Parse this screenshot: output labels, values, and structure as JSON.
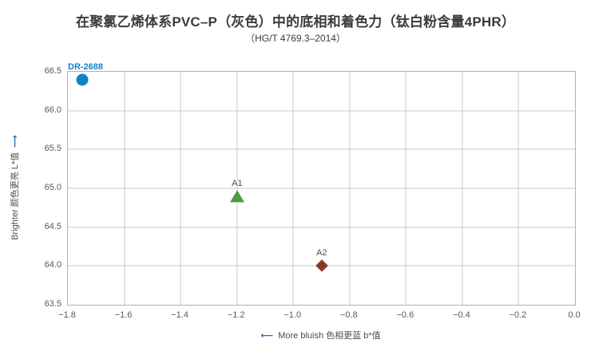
{
  "page": {
    "title": "在聚氯乙烯体系PVC–P（灰色）中的底相和着色力（钛白粉含量4PHR）",
    "subtitle": "（HG/T 4769.3–2014）"
  },
  "chart_data": {
    "type": "scatter",
    "title": "在聚氯乙烯体系PVC–P（灰色）中的底相和着色力（钛白粉含量4PHR）",
    "subtitle": "（HG/T 4769.3–2014）",
    "xlabel": "More bluish 色相更蓝  b*值",
    "xlabel_arrow": "⟵",
    "ylabel": "Brighter 颜色更亮  L*值",
    "ylabel_arrow": "⟶",
    "xlim": [
      -1.8,
      0.0
    ],
    "ylim": [
      63.5,
      66.5
    ],
    "x_ticks": [
      -1.8,
      -1.6,
      -1.4,
      -1.2,
      -1.0,
      -0.8,
      -0.6,
      -0.4,
      -0.2,
      0.0
    ],
    "y_ticks": [
      66.5,
      66.0,
      65.5,
      65.0,
      64.5,
      64.0,
      63.5
    ],
    "grid": true,
    "legend": false,
    "series": [
      {
        "name": "DR-2688",
        "marker": "circle",
        "color": "#1483c4",
        "label_color": "#1483c4",
        "label_bold": true,
        "x": -1.75,
        "y": 66.4
      },
      {
        "name": "A1",
        "marker": "triangle",
        "color": "#4f9a43",
        "label_color": "#4d4d4d",
        "label_bold": false,
        "x": -1.2,
        "y": 64.9
      },
      {
        "name": "A2",
        "marker": "diamond",
        "color": "#833c24",
        "label_color": "#4d4d4d",
        "label_bold": false,
        "x": -0.9,
        "y": 64.0
      }
    ],
    "colors": {
      "accent_blue": "#1483c4",
      "green": "#4f9a43",
      "brown": "#833c24",
      "arrow_blue": "#2470b3",
      "grid_gray": "#c9c9c9"
    }
  }
}
